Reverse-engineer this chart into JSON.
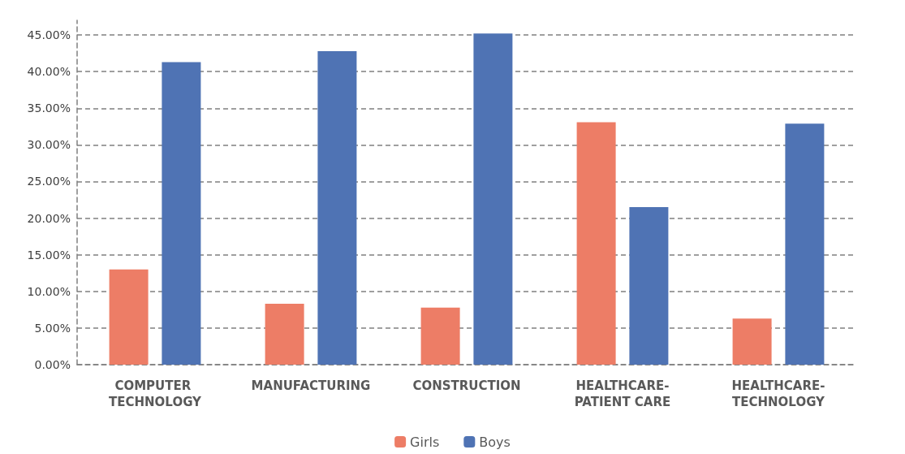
{
  "chart_data": {
    "type": "bar",
    "categories": [
      "COMPUTER TECHNOLOGY",
      "MANUFACTURING",
      "CONSTRUCTION",
      "HEALTHCARE-PATIENT CARE",
      "HEALTHCARE-TECHNOLOGY"
    ],
    "series": [
      {
        "name": "Girls",
        "color": "#ed7d66",
        "values": [
          13,
          8.3,
          7.8,
          33.1,
          6.3
        ]
      },
      {
        "name": "Boys",
        "color": "#4f73b4",
        "values": [
          41.3,
          42.8,
          45.2,
          21.5,
          32.9
        ]
      }
    ],
    "ylim": [
      0,
      47
    ],
    "yticks": [
      {
        "value": 0,
        "label": "0.00%"
      },
      {
        "value": 5,
        "label": "5.00%"
      },
      {
        "value": 10,
        "label": "10.00%"
      },
      {
        "value": 15,
        "label": "15.00%"
      },
      {
        "value": 20,
        "label": "20.00%"
      },
      {
        "value": 25,
        "label": "25.00%"
      },
      {
        "value": 30,
        "label": "30.00%"
      },
      {
        "value": 35,
        "label": "35.00%"
      },
      {
        "value": 40,
        "label": "40.00%"
      },
      {
        "value": 45,
        "label": "45.00%"
      }
    ],
    "grid": "y",
    "legend": "bottom"
  }
}
